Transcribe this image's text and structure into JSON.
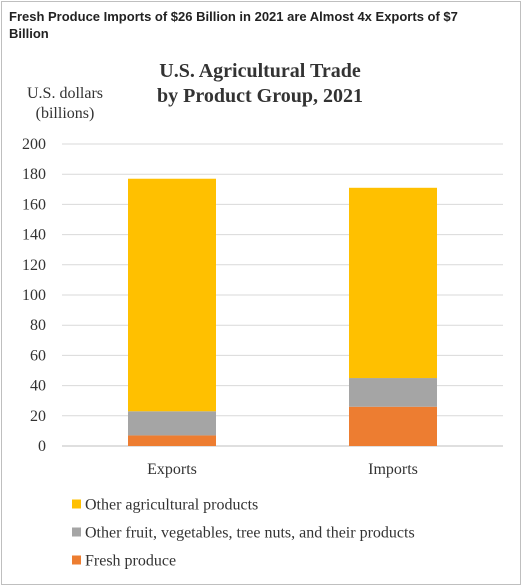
{
  "figure_heading": "Fresh Produce Imports of $26 Billion in 2021 are Almost 4x Exports of $7 Billion",
  "chart_data": {
    "type": "bar",
    "stacked": true,
    "title_line1": "U.S. Agricultural Trade",
    "title_line2": "by Product Group, 2021",
    "ylabel_line1": "U.S. dollars",
    "ylabel_line2": "(billions)",
    "categories": [
      "Exports",
      "Imports"
    ],
    "series": [
      {
        "name": "Fresh produce",
        "values": [
          7,
          26
        ],
        "color": "#ED7D31"
      },
      {
        "name": "Other fruit, vegetables, tree nuts, and their products",
        "values": [
          16,
          19
        ],
        "color": "#A5A5A5"
      },
      {
        "name": "Other agricultural products",
        "values": [
          154,
          126
        ],
        "color": "#FFC000"
      }
    ],
    "legend_order": [
      "Other agricultural products",
      "Other fruit, vegetables, tree nuts, and their products",
      "Fresh produce"
    ],
    "yticks": [
      0,
      20,
      40,
      60,
      80,
      100,
      120,
      140,
      160,
      180,
      200
    ],
    "ylim": [
      0,
      200
    ],
    "grid": true,
    "legend_position": "bottom"
  }
}
